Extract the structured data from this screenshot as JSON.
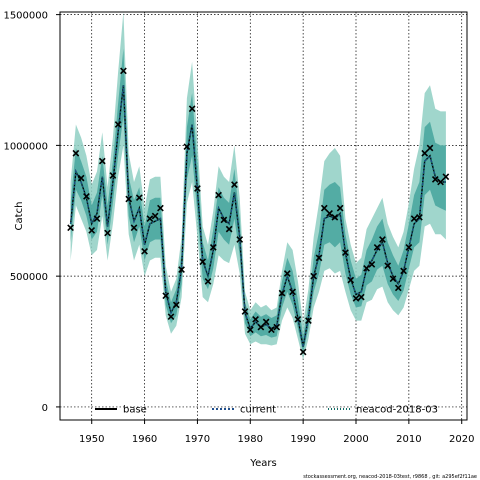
{
  "chart_data": {
    "type": "line",
    "title": "",
    "xlabel": "Years",
    "ylabel": "Catch",
    "xlim": [
      1944,
      2021
    ],
    "ylim": [
      -50000,
      1510000
    ],
    "xticks": [
      1950,
      1960,
      1970,
      1980,
      1990,
      2000,
      2010,
      2020
    ],
    "yticks": [
      0,
      500000,
      1000000,
      1500000
    ],
    "xtick_labels": [
      "1950",
      "1960",
      "1970",
      "1980",
      "1990",
      "2000",
      "2010",
      "2020"
    ],
    "ytick_labels": [
      "0",
      "500000",
      "1000000",
      "1500000"
    ],
    "grid": true,
    "legend_position": "bottom",
    "footnote": "stockassessment.org, neacod-2018-03test, r9868 , git: a295ef2f11ae",
    "x": [
      1946,
      1947,
      1948,
      1949,
      1950,
      1951,
      1952,
      1953,
      1954,
      1955,
      1956,
      1957,
      1958,
      1959,
      1960,
      1961,
      1962,
      1963,
      1964,
      1965,
      1966,
      1967,
      1968,
      1969,
      1970,
      1971,
      1972,
      1973,
      1974,
      1975,
      1976,
      1977,
      1978,
      1979,
      1980,
      1981,
      1982,
      1983,
      1984,
      1985,
      1986,
      1987,
      1988,
      1989,
      1990,
      1991,
      1992,
      1993,
      1994,
      1995,
      1996,
      1997,
      1998,
      1999,
      2000,
      2001,
      2002,
      2003,
      2004,
      2005,
      2006,
      2007,
      2008,
      2009,
      2010,
      2011,
      2012,
      2013,
      2014,
      2015,
      2016,
      2017
    ],
    "observed": [
      685000,
      970000,
      875000,
      805000,
      675000,
      720000,
      940000,
      665000,
      885000,
      1080000,
      1285000,
      795000,
      685000,
      800000,
      595000,
      720000,
      730000,
      760000,
      425000,
      345000,
      390000,
      525000,
      995000,
      1140000,
      835000,
      555000,
      480000,
      610000,
      810000,
      715000,
      680000,
      850000,
      640000,
      365000,
      295000,
      335000,
      305000,
      325000,
      295000,
      305000,
      435000,
      510000,
      440000,
      335000,
      210000,
      330000,
      500000,
      570000,
      760000,
      740000,
      725000,
      760000,
      590000,
      485000,
      415000,
      420000,
      530000,
      545000,
      610000,
      640000,
      540000,
      490000,
      455000,
      520000,
      610000,
      720000,
      725000,
      970000,
      990000,
      870000,
      860000,
      880000
    ],
    "series": [
      {
        "name": "base",
        "values": [
          700000,
          900000,
          860000,
          800000,
          700000,
          740000,
          880000,
          690000,
          860000,
          1050000,
          1230000,
          800000,
          710000,
          760000,
          620000,
          700000,
          710000,
          720000,
          440000,
          360000,
          400000,
          530000,
          970000,
          1080000,
          830000,
          560000,
          500000,
          600000,
          760000,
          720000,
          700000,
          820000,
          650000,
          360000,
          300000,
          325000,
          305000,
          315000,
          300000,
          310000,
          430000,
          500000,
          440000,
          340000,
          230000,
          340000,
          500000,
          580000,
          720000,
          730000,
          720000,
          740000,
          590000,
          490000,
          430000,
          440000,
          530000,
          560000,
          600000,
          630000,
          550000,
          500000,
          470000,
          520000,
          610000,
          700000,
          720000,
          940000,
          960000,
          880000,
          860000,
          860000
        ],
        "lower_outer": [
          560000,
          770000,
          720000,
          670000,
          580000,
          600000,
          730000,
          560000,
          700000,
          880000,
          1000000,
          660000,
          560000,
          620000,
          500000,
          560000,
          570000,
          570000,
          350000,
          280000,
          310000,
          420000,
          780000,
          860000,
          650000,
          420000,
          400000,
          470000,
          580000,
          560000,
          550000,
          620000,
          510000,
          280000,
          240000,
          250000,
          240000,
          240000,
          235000,
          240000,
          330000,
          380000,
          340000,
          260000,
          180000,
          260000,
          380000,
          440000,
          520000,
          530000,
          510000,
          520000,
          440000,
          370000,
          330000,
          330000,
          400000,
          410000,
          450000,
          460000,
          400000,
          370000,
          350000,
          380000,
          450000,
          520000,
          540000,
          690000,
          700000,
          660000,
          660000,
          640000
        ],
        "upper_outer": [
          860000,
          1080000,
          1030000,
          960000,
          850000,
          900000,
          1050000,
          840000,
          1030000,
          1280000,
          1510000,
          970000,
          860000,
          920000,
          760000,
          870000,
          880000,
          880000,
          540000,
          440000,
          490000,
          650000,
          1180000,
          1320000,
          1020000,
          690000,
          620000,
          750000,
          920000,
          880000,
          860000,
          1000000,
          800000,
          440000,
          370000,
          400000,
          380000,
          390000,
          370000,
          380000,
          520000,
          630000,
          600000,
          480000,
          320000,
          450000,
          650000,
          780000,
          940000,
          970000,
          990000,
          960000,
          720000,
          620000,
          550000,
          570000,
          680000,
          720000,
          760000,
          800000,
          700000,
          650000,
          610000,
          670000,
          780000,
          910000,
          1000000,
          1200000,
          1230000,
          1140000,
          1130000,
          1130000
        ],
        "lower_inner": [
          630000,
          830000,
          790000,
          730000,
          640000,
          670000,
          810000,
          620000,
          780000,
          960000,
          1110000,
          730000,
          630000,
          690000,
          560000,
          630000,
          640000,
          640000,
          390000,
          320000,
          350000,
          470000,
          870000,
          960000,
          740000,
          490000,
          450000,
          530000,
          670000,
          640000,
          620000,
          720000,
          580000,
          320000,
          270000,
          285000,
          270000,
          275000,
          265000,
          270000,
          380000,
          440000,
          390000,
          300000,
          205000,
          300000,
          440000,
          510000,
          620000,
          630000,
          610000,
          630000,
          510000,
          430000,
          380000,
          385000,
          465000,
          480000,
          525000,
          540000,
          470000,
          430000,
          405000,
          445000,
          530000,
          610000,
          630000,
          810000,
          830000,
          770000,
          760000,
          750000
        ],
        "upper_inner": [
          780000,
          990000,
          940000,
          880000,
          770000,
          820000,
          960000,
          770000,
          940000,
          1160000,
          1370000,
          880000,
          790000,
          840000,
          690000,
          790000,
          800000,
          800000,
          490000,
          400000,
          450000,
          590000,
          1070000,
          1200000,
          930000,
          630000,
          560000,
          680000,
          840000,
          800000,
          780000,
          910000,
          720000,
          400000,
          335000,
          365000,
          345000,
          355000,
          340000,
          350000,
          480000,
          570000,
          520000,
          410000,
          270000,
          390000,
          570000,
          670000,
          830000,
          850000,
          860000,
          840000,
          660000,
          560000,
          490000,
          505000,
          600000,
          640000,
          690000,
          720000,
          630000,
          580000,
          540000,
          600000,
          700000,
          810000,
          860000,
          1070000,
          1090000,
          1010000,
          1000000,
          1000000
        ]
      },
      {
        "name": "current",
        "values": [
          700000,
          900000,
          860000,
          800000,
          700000,
          740000,
          880000,
          690000,
          860000,
          1050000,
          1230000,
          800000,
          710000,
          760000,
          620000,
          700000,
          710000,
          720000,
          440000,
          360000,
          400000,
          530000,
          970000,
          1080000,
          830000,
          560000,
          500000,
          600000,
          760000,
          720000,
          700000,
          820000,
          650000,
          360000,
          300000,
          325000,
          305000,
          315000,
          300000,
          310000,
          430000,
          500000,
          440000,
          340000,
          230000,
          340000,
          500000,
          580000,
          720000,
          730000,
          720000,
          740000,
          590000,
          490000,
          430000,
          440000,
          530000,
          560000,
          600000,
          630000,
          550000,
          500000,
          470000,
          520000,
          610000,
          700000,
          720000,
          940000,
          960000,
          880000,
          860000,
          860000
        ]
      },
      {
        "name": "neacod-2018-03",
        "values": [
          700000,
          900000,
          860000,
          800000,
          700000,
          740000,
          880000,
          690000,
          860000,
          1050000,
          1230000,
          800000,
          710000,
          760000,
          620000,
          700000,
          710000,
          720000,
          440000,
          360000,
          400000,
          530000,
          970000,
          1080000,
          830000,
          560000,
          500000,
          600000,
          760000,
          720000,
          700000,
          820000,
          650000,
          360000,
          300000,
          325000,
          305000,
          315000,
          300000,
          310000,
          430000,
          500000,
          440000,
          340000,
          230000,
          340000,
          500000,
          580000,
          720000,
          730000,
          720000,
          740000,
          590000,
          490000,
          430000,
          440000,
          530000,
          560000,
          600000,
          630000,
          550000,
          500000,
          470000,
          520000,
          610000,
          700000,
          720000,
          940000,
          960000,
          880000,
          860000,
          860000
        ]
      }
    ],
    "colors": {
      "band_outer": "#8fcfc3",
      "band_inner": "#45a59c",
      "base_line": "#000000",
      "current_line": "#1f4e8c",
      "neacod_line": "#0f6b64",
      "marker": "#000000",
      "grid": "#000000"
    }
  }
}
